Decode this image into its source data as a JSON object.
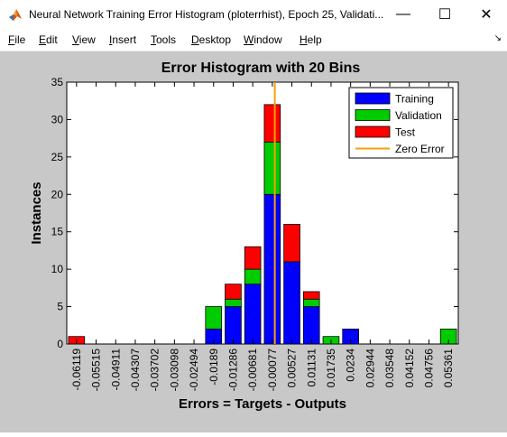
{
  "window": {
    "title": "Neural Network Training Error Histogram (ploterrhist), Epoch 25, Validati...",
    "minimize_glyph": "—",
    "maximize_glyph": "☐",
    "close_glyph": "✕"
  },
  "menu": {
    "items": [
      {
        "key": "F",
        "rest": "ile"
      },
      {
        "key": "E",
        "rest": "dit"
      },
      {
        "key": "V",
        "rest": "iew"
      },
      {
        "key": "I",
        "rest": "nsert"
      },
      {
        "key": "T",
        "rest": "ools"
      },
      {
        "key": "D",
        "rest": "esktop"
      },
      {
        "key": "W",
        "rest": "indow"
      },
      {
        "key": "H",
        "rest": "elp"
      }
    ],
    "dock_glyph": "↘"
  },
  "chart_data": {
    "type": "bar",
    "stacked": true,
    "title": "Error Histogram with 20 Bins",
    "xlabel": "Errors = Targets - Outputs",
    "ylabel": "Instances",
    "ylim": [
      0,
      35
    ],
    "yticks": [
      0,
      5,
      10,
      15,
      20,
      25,
      30,
      35
    ],
    "categories": [
      "-0.06119",
      "-0.05515",
      "-0.04911",
      "-0.04307",
      "-0.03702",
      "-0.03098",
      "-0.02494",
      "-0.0189",
      "-0.01286",
      "-0.00681",
      "-0.00077",
      "0.00527",
      "0.01131",
      "0.01735",
      "0.0234",
      "0.02944",
      "0.03548",
      "0.04152",
      "0.04756",
      "0.05361"
    ],
    "series": [
      {
        "name": "Training",
        "color": "#0000ff",
        "values": [
          0,
          0,
          0,
          0,
          0,
          0,
          0,
          2,
          5,
          8,
          20,
          11,
          5,
          0,
          2,
          0,
          0,
          0,
          0,
          0
        ]
      },
      {
        "name": "Validation",
        "color": "#00cc00",
        "values": [
          0,
          0,
          0,
          0,
          0,
          0,
          0,
          3,
          1,
          2,
          7,
          0,
          1,
          1,
          0,
          0,
          0,
          0,
          0,
          2
        ]
      },
      {
        "name": "Test",
        "color": "#ff0000",
        "values": [
          1,
          0,
          0,
          0,
          0,
          0,
          0,
          0,
          2,
          3,
          5,
          5,
          1,
          0,
          0,
          0,
          0,
          0,
          0,
          0
        ]
      }
    ],
    "zero_error": {
      "name": "Zero Error",
      "color": "#f5a00a",
      "x": 0
    },
    "legend_position": "top-right"
  }
}
